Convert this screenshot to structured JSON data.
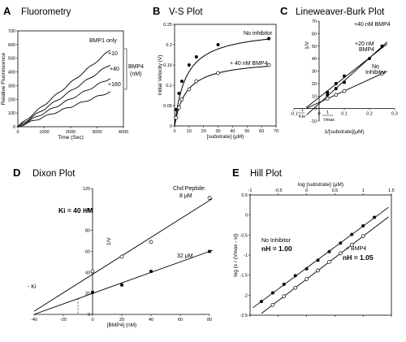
{
  "chart_data": [
    {
      "id": "A",
      "type": "line",
      "panel_label": "A",
      "title": "Fluorometry",
      "xlabel": "Time (Sec)",
      "ylabel": "Relative Fluorescence",
      "xlim": [
        0,
        4000
      ],
      "ylim": [
        0,
        700
      ],
      "xticks": [
        "0",
        "1000",
        "2000",
        "3000",
        "4000"
      ],
      "yticks": [
        "0",
        "100",
        "200",
        "300",
        "400",
        "500",
        "600",
        "700"
      ],
      "grid": false,
      "series": [
        {
          "name": "BMP1 only",
          "x": [
            0,
            3500
          ],
          "y": [
            0,
            560
          ]
        },
        {
          "name": "+10",
          "x": [
            0,
            3500
          ],
          "y": [
            0,
            455
          ]
        },
        {
          "name": "+40",
          "x": [
            0,
            3500
          ],
          "y": [
            0,
            355
          ]
        },
        {
          "name": "+160",
          "x": [
            0,
            3500
          ],
          "y": [
            0,
            255
          ]
        }
      ],
      "annotations": [
        "BMP4",
        "(nM)"
      ]
    },
    {
      "id": "B",
      "type": "scatter",
      "panel_label": "B",
      "title": "V-S Plot",
      "xlabel": "[substrate] (μM)",
      "ylabel": "Initial Velocity (V)",
      "xlim": [
        0,
        70
      ],
      "ylim": [
        0,
        0.25
      ],
      "xticks": [
        "0",
        "10",
        "20",
        "30",
        "40",
        "50",
        "60",
        "70"
      ],
      "yticks": [
        "0",
        "0.05",
        "0.1",
        "0.15",
        "0.2",
        "0.25"
      ],
      "grid": false,
      "series": [
        {
          "name": "No inhibitor",
          "marker": "filled",
          "x": [
            1,
            3,
            5,
            10,
            15,
            30,
            65
          ],
          "y": [
            0.04,
            0.08,
            0.11,
            0.15,
            0.17,
            0.2,
            0.215
          ]
        },
        {
          "name": "+ 40 nM BMP4",
          "marker": "open",
          "x": [
            1,
            3,
            5,
            10,
            15,
            30,
            65
          ],
          "y": [
            0.02,
            0.045,
            0.065,
            0.09,
            0.11,
            0.13,
            0.15
          ]
        }
      ],
      "fit": {
        "Vmax": [
          0.24,
          0.165
        ],
        "Km": [
          8,
          8
        ]
      }
    },
    {
      "id": "C",
      "type": "scatter",
      "panel_label": "C",
      "title": "Lineweaver-Burk Plot",
      "xlabel": "1/[substrate](μM)",
      "ylabel": "1/V",
      "xlim": [
        -0.1,
        0.3
      ],
      "ylim": [
        -10,
        70
      ],
      "xticks": [
        "-0.1",
        "0",
        "0.1",
        "0.2",
        "0.3"
      ],
      "yticks": [
        "-10",
        "0",
        "10",
        "20",
        "30",
        "40",
        "50",
        "60",
        "70"
      ],
      "grid": false,
      "series": [
        {
          "name": "+40 nM BMP4",
          "marker": "filled",
          "x": [
            0.033,
            0.067,
            0.1,
            0.2
          ],
          "y": [
            13,
            20,
            26,
            40
          ]
        },
        {
          "name": "+20 nM BMP4",
          "marker": "filled-square",
          "x": [
            0.033,
            0.067,
            0.1,
            0.25
          ],
          "y": [
            11,
            16,
            21,
            50
          ]
        },
        {
          "name": "No Inhibitor",
          "marker": "open",
          "x": [
            0.033,
            0.067,
            0.1,
            0.25
          ],
          "y": [
            8,
            11,
            14,
            28
          ]
        }
      ],
      "labels": [
        "+40 nM BMP4",
        "+20 nM",
        "BMP4",
        "No",
        "Inhibitor",
        "-1",
        "Km",
        "1",
        "Vmax"
      ]
    },
    {
      "id": "D",
      "type": "scatter",
      "panel_label": "D",
      "title": "Dixon Plot",
      "xlabel": "[BMP4] (nM)",
      "ylabel": "1/V",
      "xlim": [
        -40,
        80
      ],
      "ylim": [
        0,
        120
      ],
      "xticks": [
        "-40",
        "-20",
        "0",
        "20",
        "40",
        "60",
        "80"
      ],
      "yticks": [
        "0",
        "20",
        "40",
        "60",
        "80",
        "100",
        "120"
      ],
      "grid": false,
      "series": [
        {
          "name": "Chd Peptide: 8 μM",
          "marker": "open",
          "x": [
            0,
            20,
            40,
            80
          ],
          "y": [
            41,
            55,
            69,
            111
          ]
        },
        {
          "name": "32 μM",
          "marker": "filled-square",
          "x": [
            0,
            20,
            40,
            80
          ],
          "y": [
            21,
            28,
            41,
            60
          ]
        }
      ],
      "annotations": [
        "Ki = 40 nM",
        "Chd Peptide:",
        "8 μM",
        "32 μM",
        "- Ki"
      ]
    },
    {
      "id": "E",
      "type": "scatter",
      "panel_label": "E",
      "title": "Hill Plot",
      "xlabel": "log [substrate] (μM)",
      "ylabel": "log (v / (Vmax - v))",
      "xlim": [
        -1,
        1.5
      ],
      "ylim": [
        -2.5,
        1
      ],
      "xticks": [
        "-1",
        "-0.5",
        "0",
        "0.5",
        "1",
        "1.5"
      ],
      "yticks": [
        "-2.5",
        "-2",
        "-1.5",
        "-1",
        "-0.5",
        "0",
        "0.5"
      ],
      "grid": false,
      "series": [
        {
          "name": "No Inhibitor",
          "marker": "filled",
          "nH": "1.00",
          "x": [
            -0.8,
            -0.6,
            -0.4,
            -0.2,
            0,
            0.2,
            0.4,
            0.6,
            0.8,
            1.0,
            1.2
          ],
          "y": [
            -2.1,
            -1.85,
            -1.6,
            -1.35,
            -1.15,
            -0.9,
            -0.65,
            -0.4,
            -0.15,
            0.1,
            0.35
          ]
        },
        {
          "name": "+ BMP4",
          "marker": "open",
          "nH": "1.05",
          "x": [
            -0.6,
            -0.4,
            -0.2,
            0,
            0.2,
            0.4,
            0.6,
            0.8,
            1.0
          ],
          "y": [
            -2.2,
            -1.95,
            -1.7,
            -1.45,
            -1.2,
            -0.95,
            -0.7,
            -0.45,
            -0.2
          ]
        }
      ],
      "labels": [
        "No Inhibitor",
        "nH = 1.00",
        "+ BMP4",
        "nH = 1.05"
      ]
    }
  ]
}
